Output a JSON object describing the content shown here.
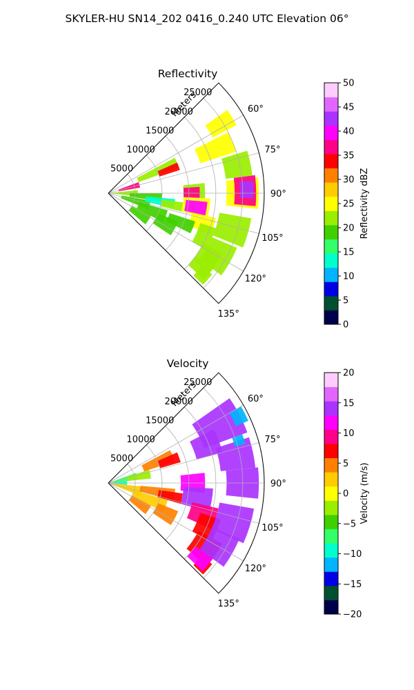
{
  "figure_title": "SKYLER-HU  SN14_202  0416_0.240 UTC Elevation 06°",
  "chart_data": [
    {
      "type": "heatmap",
      "title": "Reflectivity",
      "range_axis_label": "Meters",
      "range_ticks": [
        5000,
        10000,
        15000,
        20000,
        25000
      ],
      "range_tick_labels": [
        "5000",
        "10000",
        "15000",
        "20000",
        "25000"
      ],
      "azimuth_ticks": [
        60,
        75,
        90,
        105,
        120,
        135
      ],
      "azimuth_tick_labels": [
        "60°",
        "75°",
        "90°",
        "105°",
        "120°",
        "135°"
      ],
      "azimuth_lim": [
        45,
        135
      ],
      "range_lim": [
        0,
        29000
      ],
      "grid": true,
      "colorbar": {
        "label": "Reflectivity dBZ",
        "lim": [
          0,
          50
        ],
        "ticks": [
          0,
          5,
          10,
          15,
          20,
          25,
          30,
          35,
          40,
          45,
          50
        ],
        "tick_labels": [
          "0",
          "5",
          "10",
          "15",
          "20",
          "25",
          "30",
          "35",
          "40",
          "45",
          "50"
        ],
        "colors": [
          "#00004a",
          "#005030",
          "#0000e6",
          "#00b4ff",
          "#00ffcc",
          "#33ff66",
          "#40d000",
          "#9aee00",
          "#ffff00",
          "#ffcc00",
          "#ff8000",
          "#ff0000",
          "#ff0088",
          "#ff00ff",
          "#aa33ff",
          "#e066ff",
          "#ffccff"
        ]
      },
      "echo_cells": [
        {
          "az": [
            84,
            96
          ],
          "r": [
            0,
            5500
          ],
          "value": 22
        },
        {
          "az": [
            70,
            80
          ],
          "r": [
            2000,
            6000
          ],
          "value": 37
        },
        {
          "az": [
            90,
            99
          ],
          "r": [
            4000,
            10000
          ],
          "value": 20
        },
        {
          "az": [
            100,
            112
          ],
          "r": [
            2500,
            8000
          ],
          "value": 20
        },
        {
          "az": [
            62,
            70
          ],
          "r": [
            6000,
            14000
          ],
          "value": 21
        },
        {
          "az": [
            66,
            72
          ],
          "r": [
            10000,
            14000
          ],
          "value": 34
        },
        {
          "az": [
            95,
            103
          ],
          "r": [
            7000,
            12500
          ],
          "value": 13
        },
        {
          "az": [
            97,
            104
          ],
          "r": [
            10000,
            14000
          ],
          "value": 21
        },
        {
          "az": [
            106,
            118
          ],
          "r": [
            6000,
            11500
          ],
          "value": 20
        },
        {
          "az": [
            112,
            124
          ],
          "r": [
            10000,
            14000
          ],
          "value": 18
        },
        {
          "az": [
            118,
            130
          ],
          "r": [
            5000,
            9000
          ],
          "value": 20
        },
        {
          "az": [
            84,
            93
          ],
          "r": [
            14000,
            18000
          ],
          "value": 22
        },
        {
          "az": [
            86,
            93
          ],
          "r": [
            14000,
            17000
          ],
          "value": 36
        },
        {
          "az": [
            93,
            104
          ],
          "r": [
            14000,
            19000
          ],
          "value": 26
        },
        {
          "az": [
            95,
            103
          ],
          "r": [
            14500,
            18500
          ],
          "value": 41
        },
        {
          "az": [
            103,
            112
          ],
          "r": [
            16000,
            20500
          ],
          "value": 24
        },
        {
          "az": [
            108,
            120
          ],
          "r": [
            18000,
            21000
          ],
          "value": 23
        },
        {
          "az": [
            118,
            128
          ],
          "r": [
            20000,
            24000
          ],
          "value": 22
        },
        {
          "az": [
            128,
            134
          ],
          "r": [
            22000,
            24500
          ],
          "value": 23
        },
        {
          "az": [
            63,
            72
          ],
          "r": [
            18000,
            25000
          ],
          "value": 24
        },
        {
          "az": [
            55,
            62
          ],
          "r": [
            22000,
            27000
          ],
          "value": 24
        },
        {
          "az": [
            84,
            96
          ],
          "r": [
            22000,
            28000
          ],
          "value": 26
        },
        {
          "az": [
            83,
            95
          ],
          "r": [
            23500,
            27500
          ],
          "value": 37
        },
        {
          "az": [
            85,
            92
          ],
          "r": [
            24500,
            27000
          ],
          "value": 42
        },
        {
          "az": [
            73,
            83
          ],
          "r": [
            22000,
            27000
          ],
          "value": 23
        },
        {
          "az": [
            100,
            112
          ],
          "r": [
            21000,
            27000
          ],
          "value": 22
        },
        {
          "az": [
            113,
            126
          ],
          "r": [
            21000,
            26000
          ],
          "value": 23
        },
        {
          "az": [
            126,
            132
          ],
          "r": [
            20000,
            24000
          ],
          "value": 21
        },
        {
          "az": [
            108,
            116
          ],
          "r": [
            12000,
            17000
          ],
          "value": 20
        }
      ]
    },
    {
      "type": "heatmap",
      "title": "Velocity",
      "range_axis_label": "Meters",
      "range_ticks": [
        5000,
        10000,
        15000,
        20000,
        25000
      ],
      "range_tick_labels": [
        "5000",
        "10000",
        "15000",
        "20000",
        "25000"
      ],
      "azimuth_ticks": [
        60,
        75,
        90,
        105,
        120,
        135
      ],
      "azimuth_tick_labels": [
        "60°",
        "75°",
        "90°",
        "105°",
        "120°",
        "135°"
      ],
      "azimuth_lim": [
        45,
        135
      ],
      "range_lim": [
        0,
        29000
      ],
      "grid": true,
      "colorbar": {
        "label": "Velocity (m/s)",
        "lim": [
          -20,
          20
        ],
        "ticks": [
          -20,
          -15,
          -10,
          -5,
          0,
          5,
          10,
          15,
          20
        ],
        "tick_labels": [
          "−20",
          "−15",
          "−10",
          "−5",
          "0",
          "5",
          "10",
          "15",
          "20"
        ],
        "colors": [
          "#00004a",
          "#005030",
          "#0000e6",
          "#00b4ff",
          "#00ffcc",
          "#33ff66",
          "#40d000",
          "#9aee00",
          "#ffff00",
          "#ffcc00",
          "#ff8000",
          "#ff0000",
          "#ff0088",
          "#ff00ff",
          "#aa33ff",
          "#e066ff",
          "#ffccff"
        ]
      },
      "echo_cells": [
        {
          "az": [
            84,
            96
          ],
          "r": [
            0,
            3500
          ],
          "value": -10
        },
        {
          "az": [
            70,
            84
          ],
          "r": [
            0,
            5500
          ],
          "value": -7
        },
        {
          "az": [
            72,
            84
          ],
          "r": [
            3500,
            8000
          ],
          "value": -3
        },
        {
          "az": [
            96,
            112
          ],
          "r": [
            0,
            6500
          ],
          "value": 2
        },
        {
          "az": [
            62,
            72
          ],
          "r": [
            7000,
            13000
          ],
          "value": 4
        },
        {
          "az": [
            66,
            74
          ],
          "r": [
            10000,
            14000
          ],
          "value": 6
        },
        {
          "az": [
            95,
            105
          ],
          "r": [
            6000,
            12500
          ],
          "value": 4
        },
        {
          "az": [
            98,
            106
          ],
          "r": [
            9500,
            14000
          ],
          "value": 7
        },
        {
          "az": [
            106,
            118
          ],
          "r": [
            5000,
            11500
          ],
          "value": 3
        },
        {
          "az": [
            112,
            124
          ],
          "r": [
            10000,
            14000
          ],
          "value": 4
        },
        {
          "az": [
            118,
            130
          ],
          "r": [
            5000,
            9000
          ],
          "value": 4
        },
        {
          "az": [
            84,
            96
          ],
          "r": [
            13500,
            18000
          ],
          "value": 11
        },
        {
          "az": [
            93,
            106
          ],
          "r": [
            14000,
            19500
          ],
          "value": 15
        },
        {
          "az": [
            103,
            114
          ],
          "r": [
            16000,
            21000
          ],
          "value": 9
        },
        {
          "az": [
            108,
            120
          ],
          "r": [
            18000,
            22000
          ],
          "value": 8
        },
        {
          "az": [
            118,
            130
          ],
          "r": [
            19000,
            24000
          ],
          "value": 8
        },
        {
          "az": [
            128,
            134
          ],
          "r": [
            22000,
            24500
          ],
          "value": 6
        },
        {
          "az": [
            55,
            70
          ],
          "r": [
            19000,
            27500
          ],
          "value": 15
        },
        {
          "az": [
            63,
            75
          ],
          "r": [
            17000,
            22000
          ],
          "value": 15
        },
        {
          "az": [
            72,
            84
          ],
          "r": [
            21000,
            27500
          ],
          "value": 14
        },
        {
          "az": [
            84,
            96
          ],
          "r": [
            22000,
            28000
          ],
          "value": 15
        },
        {
          "az": [
            100,
            114
          ],
          "r": [
            21000,
            27500
          ],
          "value": 14
        },
        {
          "az": [
            113,
            126
          ],
          "r": [
            21000,
            26500
          ],
          "value": 13
        },
        {
          "az": [
            126,
            133
          ],
          "r": [
            20000,
            24000
          ],
          "value": 11
        },
        {
          "az": [
            60,
            66
          ],
          "r": [
            26000,
            28500
          ],
          "value": -12
        },
        {
          "az": [
            70,
            74
          ],
          "r": [
            24500,
            26500
          ],
          "value": -12
        }
      ]
    }
  ]
}
